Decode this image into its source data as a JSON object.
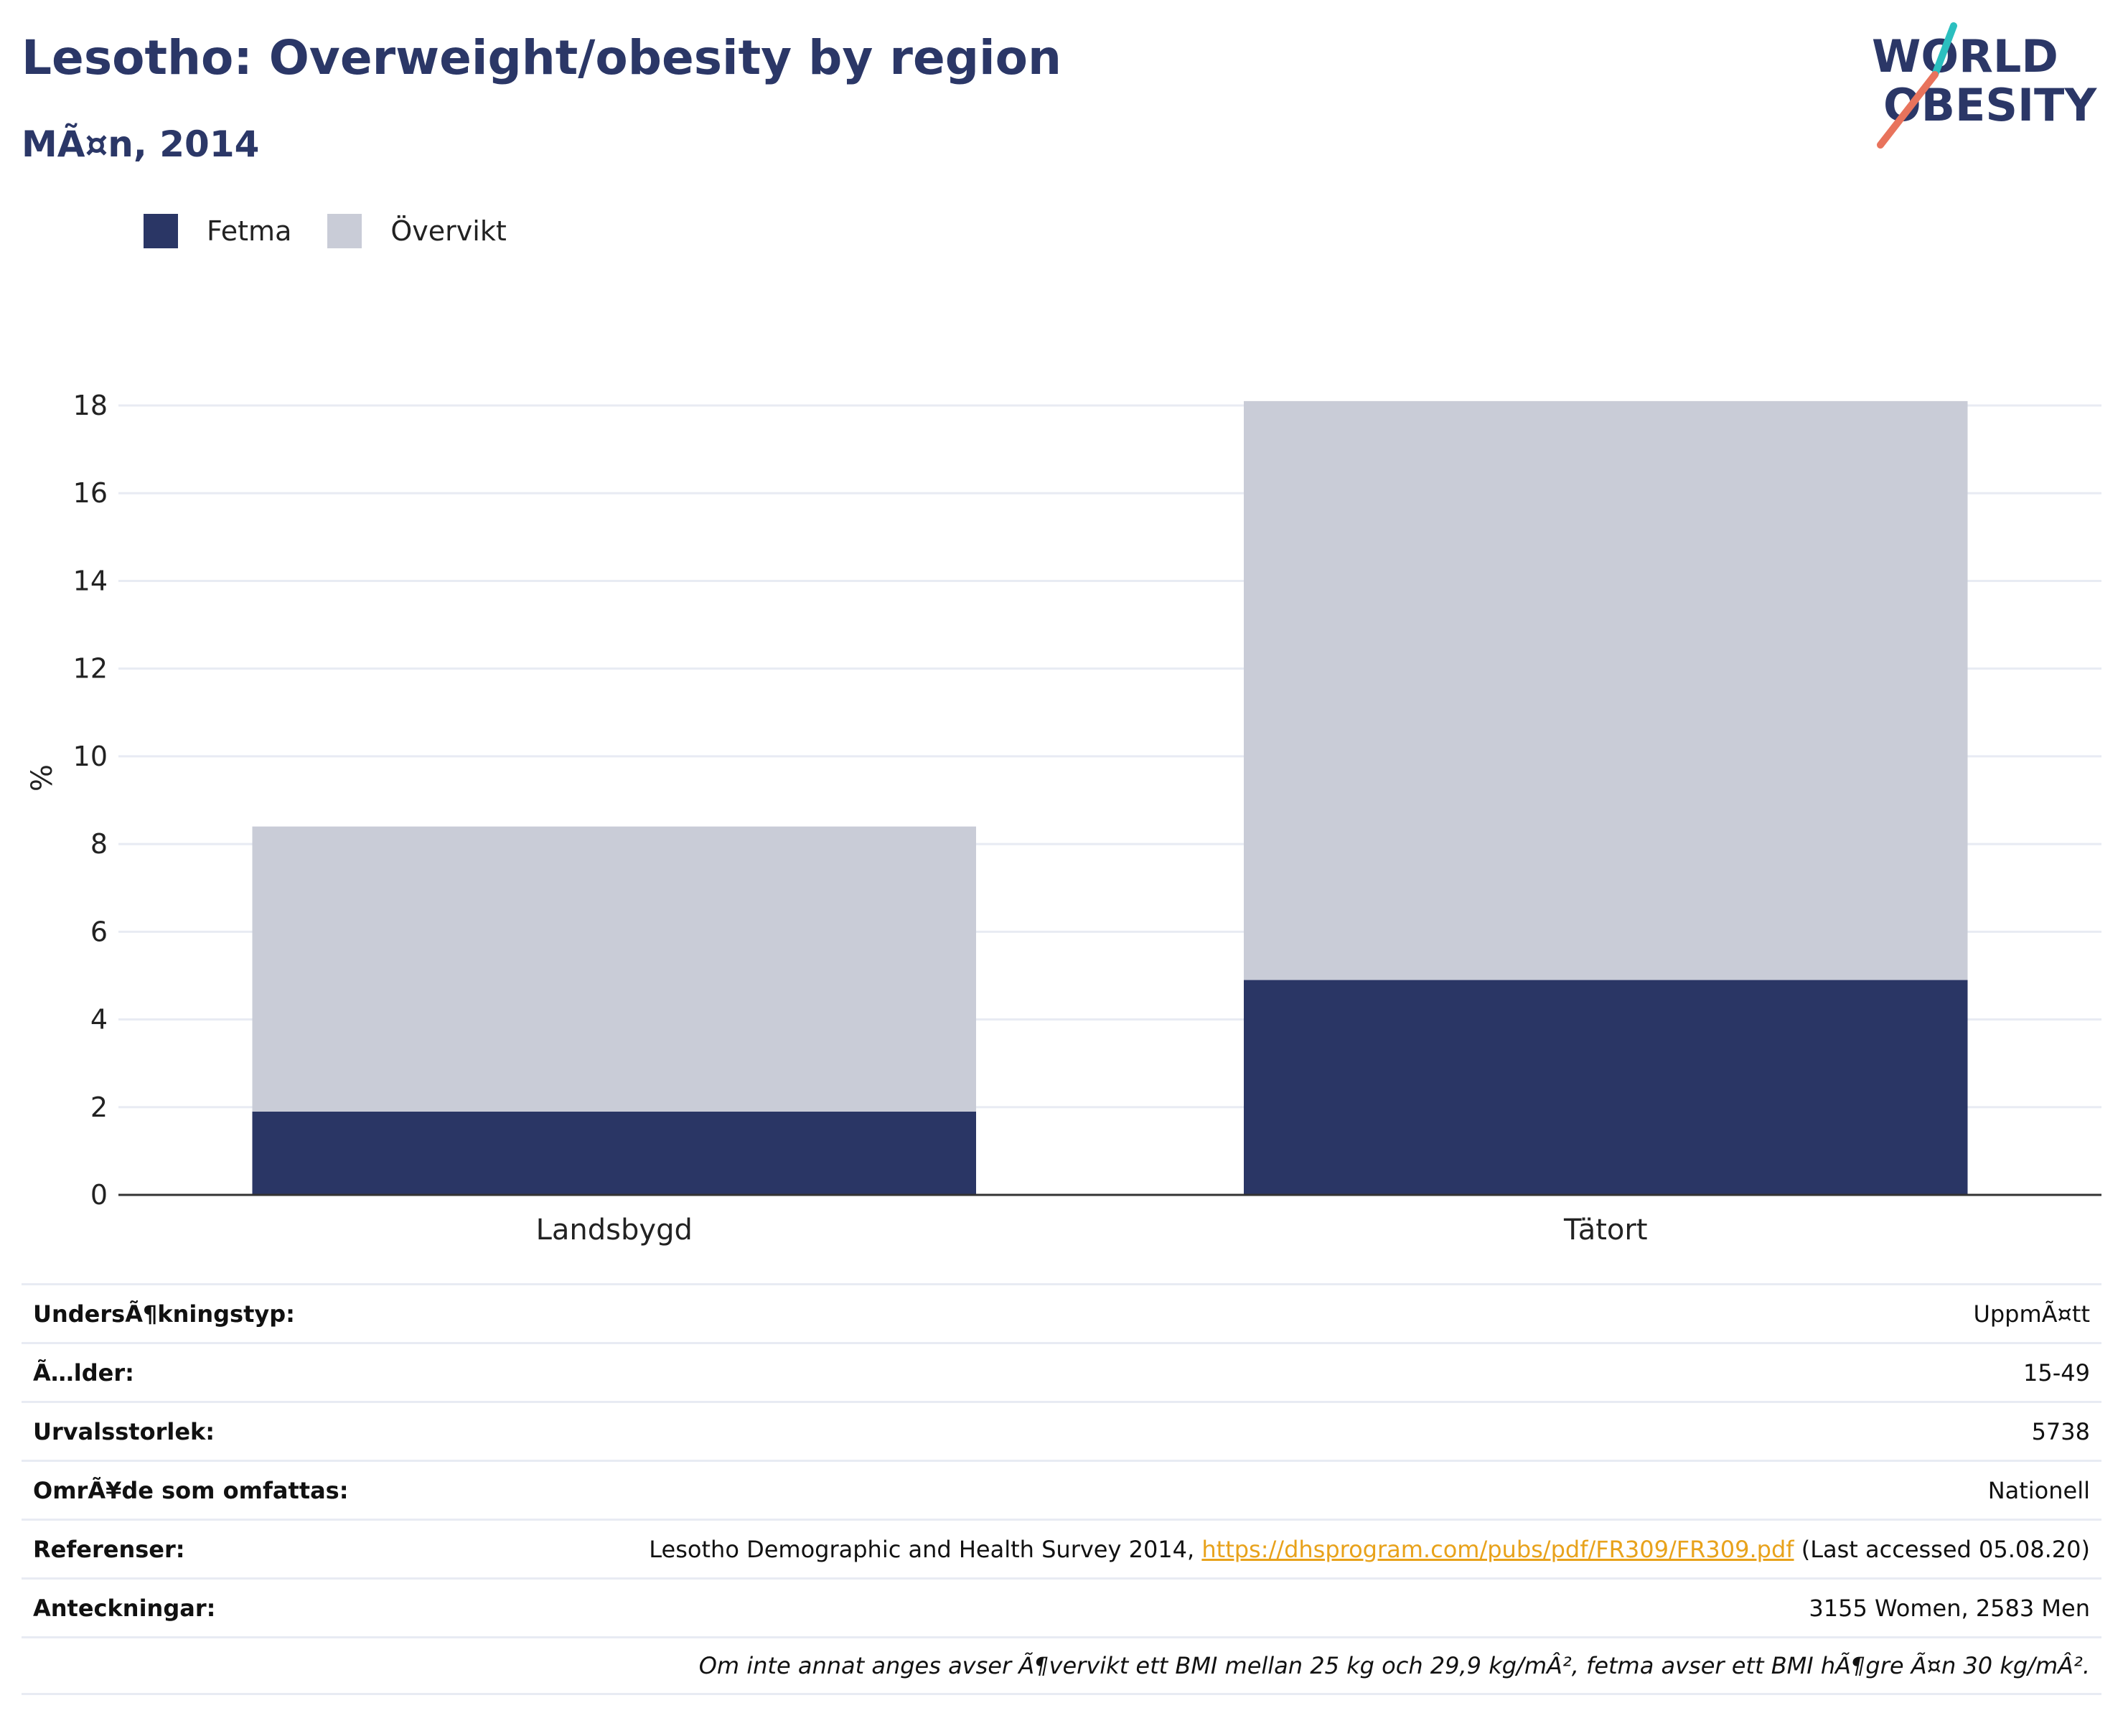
{
  "title": "Lesotho: Overweight/obesity by region",
  "subtitle": "MÃ¤n, 2014",
  "logo": {
    "line1": "WORLD",
    "line2": "OBESITY"
  },
  "colors": {
    "obesity": "#2a3665",
    "overweight": "#c9ccd7",
    "title": "#2b3767",
    "link": "#e8a21b",
    "logo_teal": "#2bbfbf",
    "logo_coral": "#e8735c"
  },
  "chart_data": {
    "type": "bar",
    "stacked": true,
    "categories": [
      "Landsbygd",
      "Tätort"
    ],
    "series": [
      {
        "name": "Fetma",
        "values": [
          1.9,
          4.9
        ]
      },
      {
        "name": "Övervikt",
        "values": [
          6.5,
          13.2
        ]
      }
    ],
    "ylabel": "%",
    "ylim": [
      0,
      18
    ],
    "yticks": [
      0,
      2,
      4,
      6,
      8,
      10,
      12,
      14,
      16,
      18
    ],
    "grid": true,
    "legend_position": "top-left"
  },
  "info": {
    "rows": [
      {
        "label": "UndersÃ¶kningstyp:",
        "value": "UppmÃ¤tt"
      },
      {
        "label": "Ã…lder:",
        "value": "15-49"
      },
      {
        "label": "Urvalsstorlek:",
        "value": "5738"
      },
      {
        "label": "OmrÃ¥de som omfattas:",
        "value": "Nationell"
      },
      {
        "label": "Anteckningar:",
        "value": "3155 Women, 2583 Men"
      }
    ],
    "references": {
      "label": "Referenser:",
      "text_before": "Lesotho Demographic and Health Survey 2014, ",
      "link": "https://dhsprogram.com/pubs/pdf/FR309/FR309.pdf",
      "text_after": " (Last accessed 05.08.20)"
    },
    "note": "Om inte annat anges avser Ã¶vervikt ett BMI mellan 25 kg och 29,9 kg/mÂ², fetma avser ett BMI hÃ¶gre Ã¤n 30 kg/mÂ²."
  }
}
